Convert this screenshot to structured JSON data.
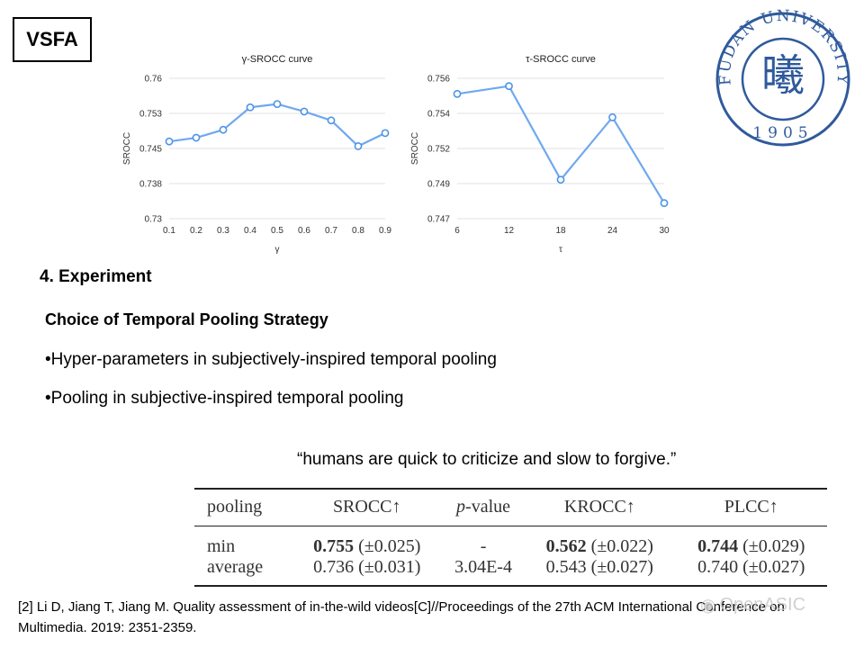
{
  "badge": "VSFA",
  "charts": [
    {
      "title": "γ-SROCC curve",
      "xlabel": "γ",
      "ylabel": "SROCC"
    },
    {
      "title": "τ-SROCC curve",
      "xlabel": "τ",
      "ylabel": "SROCC"
    }
  ],
  "chart_data": [
    {
      "type": "line",
      "title": "γ-SROCC curve",
      "xlabel": "γ",
      "ylabel": "SROCC",
      "x": [
        "0.1",
        "0.2",
        "0.3",
        "0.4",
        "0.5",
        "0.6",
        "0.7",
        "0.8",
        "0.9"
      ],
      "values": [
        0.7465,
        0.7473,
        0.749,
        0.7538,
        0.7545,
        0.7529,
        0.751,
        0.7455,
        0.7483
      ],
      "yticks": [
        "0.73",
        "0.738",
        "0.745",
        "0.753",
        "0.76"
      ],
      "ylim": [
        0.73,
        0.76
      ],
      "grid": true
    },
    {
      "type": "line",
      "title": "τ-SROCC curve",
      "xlabel": "τ",
      "ylabel": "SROCC",
      "x": [
        "6",
        "12",
        "18",
        "24",
        "30"
      ],
      "values": [
        0.755,
        0.7555,
        0.7495,
        0.7535,
        0.748
      ],
      "yticks": [
        "0.747",
        "0.749",
        "0.752",
        "0.754",
        "0.756"
      ],
      "ylim": [
        0.747,
        0.756
      ],
      "grid": true
    }
  ],
  "logo": {
    "arc_text": "FUDAN UNIVERSITY",
    "year": "1905",
    "glyph": "曦",
    "color": "#2f5a9c"
  },
  "section_title": "4. Experiment",
  "subheading": "Choice of Temporal Pooling Strategy",
  "bullets": [
    "•Hyper-parameters in subjectively-inspired temporal pooling",
    "•Pooling in subjective-inspired temporal pooling"
  ],
  "quote": "“humans are quick to criticize and slow to forgive.”",
  "table": {
    "headers": [
      "pooling",
      "SROCC↑",
      "p-value",
      "KROCC↑",
      "PLCC↑"
    ],
    "rows": [
      {
        "pooling": "min",
        "srocc": "0.755",
        "srocc_err": " (±0.025)",
        "pvalue": "-",
        "krocc": "0.562",
        "krocc_err": " (±0.022)",
        "plcc": "0.744",
        "plcc_err": " (±0.029)"
      },
      {
        "pooling": "average",
        "srocc": "0.736",
        "srocc_err": " (±0.031)",
        "pvalue": "3.04E-4",
        "krocc": "0.543",
        "krocc_err": " (±0.027)",
        "plcc": "0.740",
        "plcc_err": " (±0.027)"
      }
    ]
  },
  "reference": "[2] Li D, Jiang T, Jiang M. Quality assessment of in-the-wild videos[C]//Proceedings of the 27th ACM International Conference on Multimedia. 2019: 2351-2359.",
  "watermark": "OpenASIC"
}
